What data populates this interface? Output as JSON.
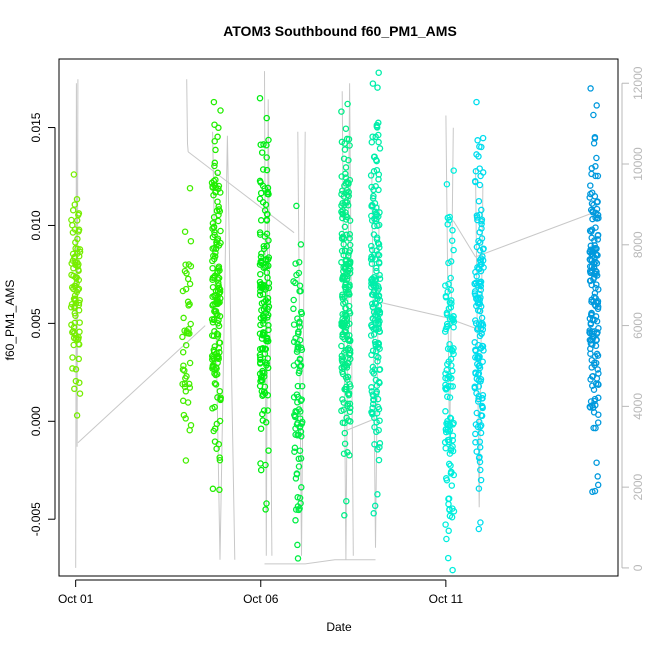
{
  "chart_data": {
    "type": "scatter",
    "title": "ATOM3 Southbound f60_PM1_AMS",
    "xlabel": "Date",
    "ylabel": "f60_PM1_AMS",
    "x_ticks": [
      {
        "label": "Oct 01",
        "day": 1
      },
      {
        "label": "Oct 06",
        "day": 6
      },
      {
        "label": "Oct 11",
        "day": 11
      }
    ],
    "xlim": [
      0.55,
      15.65
    ],
    "ylim": [
      -0.0079,
      0.0185
    ],
    "y_ticks": [
      -0.005,
      0.0,
      0.005,
      0.01,
      0.015
    ],
    "y_tick_labels": [
      "-0.005",
      "0.000",
      "0.005",
      "0.010",
      "0.015"
    ],
    "y2lim": [
      -200,
      12600
    ],
    "y2_ticks": [
      0,
      2000,
      4000,
      6000,
      8000,
      10000,
      12000
    ],
    "y2_tick_labels": [
      "0",
      "2000",
      "4000",
      "6000",
      "8000",
      "10000",
      "12000"
    ],
    "grid": false,
    "legend": "none",
    "line_color": "#c8c8c8",
    "clusters": [
      {
        "day": 1.0,
        "color": "#77ee00",
        "ymin": 0.0003,
        "ymax": 0.0126,
        "n": 90
      },
      {
        "day": 4.0,
        "color": "#44ee00",
        "ymin": -0.002,
        "ymax": 0.0119,
        "n": 45
      },
      {
        "day": 4.8,
        "color": "#22ee00",
        "ymin": -0.0035,
        "ymax": 0.0163,
        "n": 160
      },
      {
        "day": 6.1,
        "color": "#00ee11",
        "ymin": -0.0045,
        "ymax": 0.0165,
        "n": 150
      },
      {
        "day": 7.0,
        "color": "#00ee44",
        "ymin": -0.007,
        "ymax": 0.011,
        "n": 90
      },
      {
        "day": 8.3,
        "color": "#00ee88",
        "ymin": -0.0048,
        "ymax": 0.0162,
        "n": 200
      },
      {
        "day": 9.1,
        "color": "#00eeaa",
        "ymin": -0.0047,
        "ymax": 0.0178,
        "n": 190
      },
      {
        "day": 11.1,
        "color": "#00eedd",
        "ymin": -0.0076,
        "ymax": 0.0128,
        "n": 120
      },
      {
        "day": 11.9,
        "color": "#00ddee",
        "ymin": -0.0055,
        "ymax": 0.0163,
        "n": 150
      },
      {
        "day": 15.0,
        "color": "#0099dd",
        "ymin": -0.0036,
        "ymax": 0.017,
        "n": 170
      }
    ],
    "secondary_series_segments": [
      {
        "x": [
          1.0,
          1.02,
          1.04,
          1.06
        ],
        "y2": [
          0,
          12000,
          3000,
          12100
        ]
      },
      {
        "x": [
          1.06,
          4.5
        ],
        "y2": [
          3100,
          6000
        ]
      },
      {
        "x": [
          4.0,
          4.02,
          4.04
        ],
        "y2": [
          12100,
          10500,
          10300
        ]
      },
      {
        "x": [
          4.04,
          6.9
        ],
        "y2": [
          10300,
          8300
        ]
      },
      {
        "x": [
          4.7,
          4.9,
          5.1,
          5.3
        ],
        "y2": [
          10800,
          200,
          10700,
          200
        ]
      },
      {
        "x": [
          6.1,
          6.15,
          6.2,
          6.3
        ],
        "y2": [
          12300,
          300,
          11600,
          300
        ]
      },
      {
        "x": [
          6.1,
          7.2,
          8.0,
          9.1
        ],
        "y2": [
          100,
          100,
          200,
          200
        ]
      },
      {
        "x": [
          7.0,
          7.1,
          7.2
        ],
        "y2": [
          10800,
          300,
          10800
        ]
      },
      {
        "x": [
          8.2,
          8.3,
          8.4,
          8.5
        ],
        "y2": [
          11800,
          200,
          12000,
          300
        ]
      },
      {
        "x": [
          8.3,
          9.1
        ],
        "y2": [
          3400,
          3700
        ]
      },
      {
        "x": [
          9.0,
          9.1,
          9.2
        ],
        "y2": [
          9800,
          500,
          9000
        ]
      },
      {
        "x": [
          9.1,
          11.0,
          11.9
        ],
        "y2": [
          6600,
          6200,
          5900
        ]
      },
      {
        "x": [
          11.0,
          11.1,
          11.2
        ],
        "y2": [
          11200,
          2800,
          10900
        ]
      },
      {
        "x": [
          11.2,
          11.8,
          15.0
        ],
        "y2": [
          8600,
          7700,
          8800
        ]
      },
      {
        "x": [
          11.8,
          11.9,
          12.0
        ],
        "y2": [
          9900,
          1500,
          9500
        ]
      }
    ]
  }
}
